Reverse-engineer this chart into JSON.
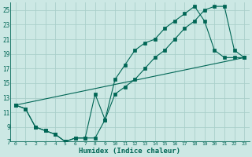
{
  "xlabel": "Humidex (Indice chaleur)",
  "bg_color": "#cce8e4",
  "grid_color": "#aacfca",
  "line_color": "#006655",
  "ylim": [
    7,
    26
  ],
  "xlim": [
    -0.5,
    23.5
  ],
  "yticks": [
    7,
    9,
    11,
    13,
    15,
    17,
    19,
    21,
    23,
    25
  ],
  "xticks": [
    0,
    1,
    2,
    3,
    4,
    5,
    6,
    7,
    8,
    9,
    10,
    11,
    12,
    13,
    14,
    15,
    16,
    17,
    18,
    19,
    20,
    21,
    22,
    23
  ],
  "line1_x": [
    0,
    1,
    2,
    3,
    4,
    5,
    6,
    7,
    8,
    9,
    10,
    11,
    12,
    13,
    14,
    15,
    16,
    17,
    18,
    19,
    20,
    21,
    22,
    23
  ],
  "line1_y": [
    12,
    11.5,
    9,
    8.5,
    8.0,
    7.0,
    7.5,
    7.5,
    7.5,
    10.0,
    13.5,
    14.5,
    15.5,
    17.0,
    18.5,
    19.5,
    21.0,
    22.5,
    23.5,
    25.0,
    25.5,
    25.5,
    19.5,
    18.5
  ],
  "line2_x": [
    0,
    1,
    2,
    3,
    4,
    5,
    6,
    7,
    8,
    9,
    10,
    11,
    12,
    13,
    14,
    15,
    16,
    17,
    18,
    19,
    20,
    21,
    22,
    23
  ],
  "line2_y": [
    12,
    11.5,
    9,
    8.5,
    8.0,
    7.0,
    7.5,
    7.5,
    13.5,
    10.0,
    15.5,
    17.5,
    19.5,
    20.5,
    21.0,
    22.5,
    23.5,
    24.5,
    25.5,
    23.5,
    19.5,
    18.5,
    18.5,
    18.5
  ],
  "line3_x": [
    0,
    23
  ],
  "line3_y": [
    12,
    18.5
  ]
}
